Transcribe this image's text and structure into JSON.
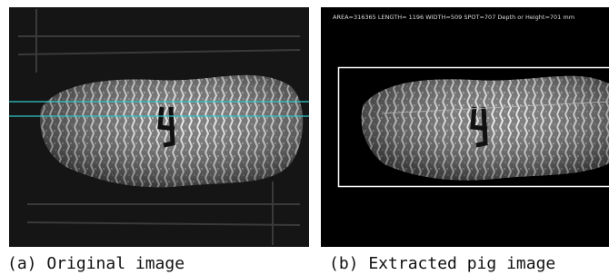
{
  "panels": [
    {
      "caption": "(a) Original image"
    },
    {
      "overlay_text": "AREA=316365 LENGTH=  1196 WIDTH=509 SPOT=707 Depth or Height=701 mm",
      "caption": "(b) Extracted pig image"
    }
  ]
}
